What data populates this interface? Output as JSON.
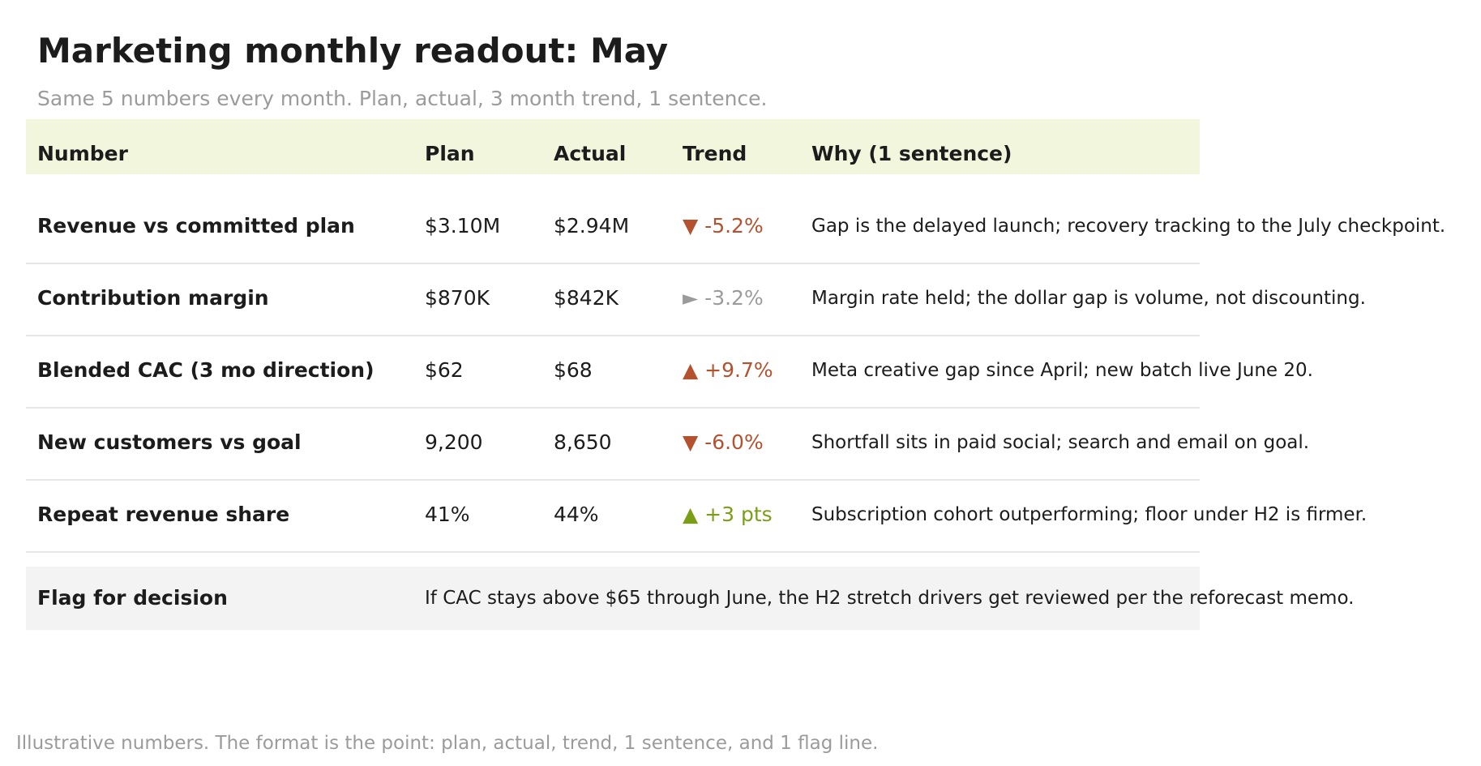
{
  "title": "Marketing monthly readout: May",
  "subtitle": "Same 5 numbers every month. Plan, actual, 3 month trend, 1 sentence.",
  "table": {
    "headers": {
      "number": "Number",
      "plan": "Plan",
      "actual": "Actual",
      "trend": "Trend",
      "why": "Why (1 sentence)"
    },
    "rows": [
      {
        "number": "Revenue vs committed plan",
        "plan": "$3.10M",
        "actual": "$2.94M",
        "trend": "▼ -5.2%",
        "trend_color": "#b4512f",
        "why": "Gap is the delayed launch; recovery tracking to the July checkpoint."
      },
      {
        "number": "Contribution margin",
        "plan": "$870K",
        "actual": "$842K",
        "trend": "► -3.2%",
        "trend_color": "#9b9b9b",
        "why": "Margin rate held; the dollar gap is volume, not discounting."
      },
      {
        "number": "Blended CAC (3 mo direction)",
        "plan": "$62",
        "actual": "$68",
        "trend": "▲ +9.7%",
        "trend_color": "#b4512f",
        "why": "Meta creative gap since April; new batch live June 20."
      },
      {
        "number": "New customers vs goal",
        "plan": "9,200",
        "actual": "8,650",
        "trend": "▼ -6.0%",
        "trend_color": "#b4512f",
        "why": "Shortfall sits in paid social; search and email on goal."
      },
      {
        "number": "Repeat revenue share",
        "plan": "41%",
        "actual": "44%",
        "trend": "▲ +3 pts",
        "trend_color": "#7a9e15",
        "why": "Subscription cohort outperforming; floor under H2 is firmer."
      }
    ],
    "flag": {
      "label": "Flag for decision",
      "text": "If CAC stays above $65 through June, the H2 stretch drivers get reviewed per the reforecast memo."
    }
  },
  "footnote": "Illustrative numbers. The format is the point: plan, actual, trend, 1 sentence, and 1 flag line.",
  "colors": {
    "header_bg": "#f1f6dc",
    "flag_bg": "#f3f3f3",
    "negative": "#b4512f",
    "neutral": "#9b9b9b",
    "positive": "#7a9e15"
  }
}
